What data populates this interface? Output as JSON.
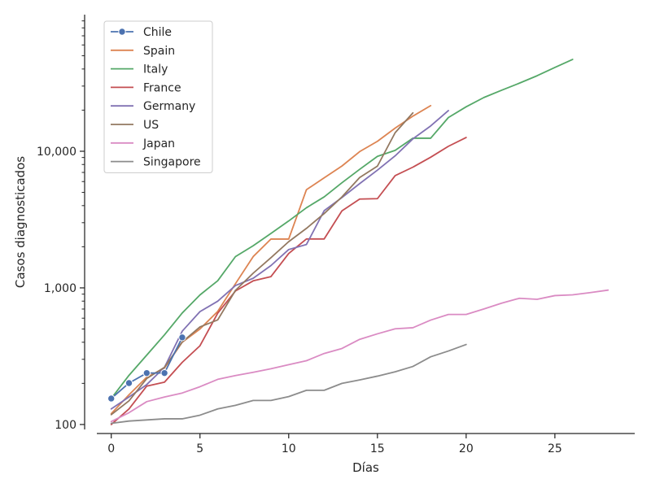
{
  "chart_data": {
    "type": "line",
    "title": "",
    "xlabel": "Días",
    "ylabel": "Casos diagnosticados",
    "yscale": "log",
    "xlim": [
      -1.5,
      29.5
    ],
    "ylim": [
      92,
      100000
    ],
    "grid": false,
    "legend_position": "top-left",
    "x_ticks": [
      0,
      5,
      10,
      15,
      20,
      25
    ],
    "x_tick_labels": [
      "0",
      "5",
      "10",
      "15",
      "20",
      "25"
    ],
    "y_ticks": [
      100,
      1000,
      10000
    ],
    "y_tick_labels": [
      "100",
      "1,000",
      "10,000"
    ],
    "series": [
      {
        "name": "Chile",
        "color": "#4c72b0",
        "marker": "circle",
        "x": [
          0,
          1,
          2,
          3,
          4
        ],
        "y": [
          155,
          201,
          238,
          238,
          434
        ]
      },
      {
        "name": "Spain",
        "color": "#dd8452",
        "x": [
          0,
          1,
          2,
          3,
          4,
          5,
          6,
          7,
          8,
          9,
          10,
          11,
          12,
          13,
          14,
          15,
          16,
          17,
          18
        ],
        "y": [
          120,
          165,
          222,
          259,
          400,
          500,
          673,
          1073,
          1695,
          2277,
          2277,
          5232,
          6391,
          7798,
          9942,
          11826,
          14769,
          18077,
          21571
        ]
      },
      {
        "name": "Italy",
        "color": "#55a868",
        "x": [
          0,
          1,
          2,
          3,
          4,
          5,
          6,
          7,
          8,
          9,
          10,
          11,
          12,
          13,
          14,
          15,
          16,
          17,
          18,
          19,
          20,
          21,
          22,
          23,
          24,
          25,
          26
        ],
        "y": [
          155,
          229,
          322,
          453,
          655,
          888,
          1128,
          1694,
          2036,
          2502,
          3089,
          3858,
          4636,
          5883,
          7375,
          9172,
          10149,
          12462,
          12462,
          17660,
          21157,
          24747,
          27980,
          31506,
          35713,
          41035,
          47021
        ]
      },
      {
        "name": "France",
        "color": "#c44e52",
        "x": [
          0,
          1,
          2,
          3,
          4,
          5,
          6,
          7,
          8,
          9,
          10,
          11,
          12,
          13,
          14,
          15,
          16,
          17,
          18,
          19,
          20
        ],
        "y": [
          100,
          130,
          191,
          204,
          285,
          377,
          653,
          949,
          1126,
          1209,
          1784,
          2281,
          2281,
          3661,
          4469,
          4499,
          6633,
          7652,
          9043,
          10871,
          12612
        ]
      },
      {
        "name": "Germany",
        "color": "#8172b3",
        "x": [
          0,
          1,
          2,
          3,
          4,
          5,
          6,
          7,
          8,
          9,
          10,
          11,
          12,
          13,
          14,
          15,
          16,
          17,
          18,
          19
        ],
        "y": [
          130,
          159,
          196,
          262,
          482,
          670,
          799,
          1040,
          1176,
          1457,
          1908,
          2078,
          3675,
          4585,
          5795,
          7272,
          9257,
          12327,
          15320,
          19848
        ]
      },
      {
        "name": "US",
        "color": "#937860",
        "x": [
          0,
          1,
          2,
          3,
          4,
          5,
          6,
          7,
          8,
          9,
          10,
          11,
          12,
          13,
          14,
          15,
          16,
          17
        ],
        "y": [
          118,
          149,
          217,
          262,
          402,
          518,
          583,
          959,
          1281,
          1663,
          2179,
          2727,
          3499,
          4632,
          6421,
          7783,
          13677,
          19100
        ]
      },
      {
        "name": "Japan",
        "color": "#da8bc3",
        "x": [
          0,
          1,
          2,
          3,
          4,
          5,
          6,
          7,
          8,
          9,
          10,
          11,
          12,
          13,
          14,
          15,
          16,
          17,
          18,
          19,
          20,
          21,
          22,
          23,
          24,
          25,
          26,
          27,
          28
        ],
        "y": [
          105,
          122,
          147,
          159,
          170,
          189,
          214,
          228,
          241,
          256,
          274,
          293,
          331,
          360,
          420,
          461,
          502,
          511,
          581,
          639,
          639,
          701,
          773,
          839,
          825,
          878,
          889,
          924,
          963
        ]
      },
      {
        "name": "Singapore",
        "color": "#8c8c8c",
        "x": [
          0,
          1,
          2,
          3,
          4,
          5,
          6,
          7,
          8,
          9,
          10,
          11,
          12,
          13,
          14,
          15,
          16,
          17,
          18,
          19,
          20
        ],
        "y": [
          102,
          106,
          108,
          110,
          110,
          117,
          130,
          138,
          150,
          150,
          160,
          178,
          178,
          200,
          212,
          226,
          243,
          266,
          313,
          345,
          385
        ]
      }
    ]
  }
}
